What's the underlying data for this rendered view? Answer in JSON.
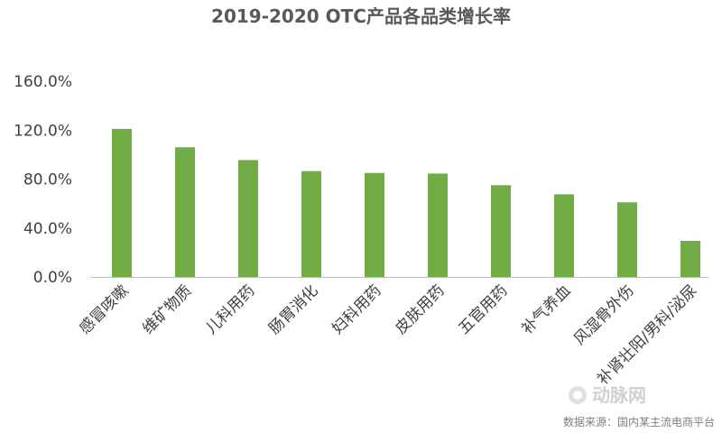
{
  "chart_data": {
    "type": "bar",
    "title": "2019-2020 OTC产品各品类增长率",
    "categories": [
      "感冒咳嗽",
      "维矿物质",
      "儿科用药",
      "肠胃消化",
      "妇科用药",
      "皮肤用药",
      "五官用药",
      "补气养血",
      "风湿骨外伤",
      "补肾壮阳/男科/泌尿"
    ],
    "values": [
      121,
      106,
      95.5,
      86.5,
      85,
      84.5,
      75,
      67.5,
      61,
      29.5
    ],
    "value_format": "percent",
    "yticks": [
      "0.0%",
      "40.0%",
      "80.0%",
      "120.0%",
      "160.0%"
    ],
    "ytick_values": [
      0,
      40,
      80,
      120,
      160
    ],
    "ylim": [
      0,
      160
    ],
    "grid": false,
    "bar_color": "#70ad47",
    "axis_color": "#bfbfbf"
  },
  "source_note": "数据来源：国内某主流电商平台",
  "watermark": "动脉网"
}
